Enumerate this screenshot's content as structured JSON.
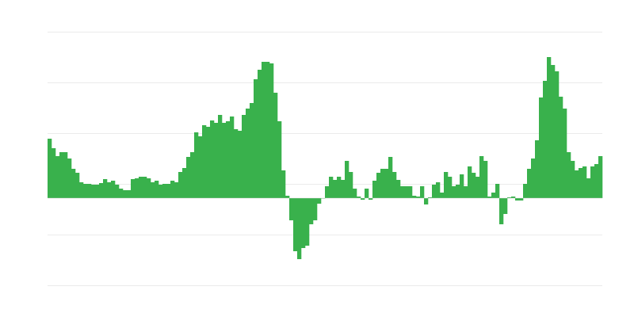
{
  "chart_data": {
    "type": "bar",
    "title": "",
    "xlabel": "",
    "ylabel": "",
    "ylim": [
      -110,
      210
    ],
    "gridlines": [
      210,
      146,
      82,
      18,
      -46,
      -110
    ],
    "grid": true,
    "legend": "none",
    "bar_color": "#39b14c",
    "grid_color": "#ebebeb",
    "values": [
      75,
      63,
      53,
      58,
      58,
      50,
      37,
      32,
      20,
      18,
      18,
      17,
      17,
      19,
      24,
      20,
      22,
      17,
      12,
      10,
      10,
      24,
      25,
      27,
      27,
      25,
      20,
      22,
      17,
      18,
      18,
      22,
      20,
      33,
      38,
      52,
      58,
      83,
      78,
      92,
      90,
      98,
      95,
      105,
      95,
      97,
      103,
      87,
      85,
      105,
      113,
      120,
      150,
      162,
      172,
      172,
      170,
      133,
      97,
      35,
      3,
      -28,
      -67,
      -77,
      -63,
      -60,
      -33,
      -28,
      -7,
      0,
      15,
      27,
      23,
      27,
      23,
      47,
      33,
      12,
      2,
      -2,
      12,
      -2,
      22,
      32,
      37,
      37,
      52,
      33,
      23,
      15,
      15,
      15,
      3,
      2,
      15,
      -8,
      1,
      17,
      20,
      7,
      33,
      27,
      15,
      17,
      30,
      15,
      40,
      32,
      27,
      53,
      47,
      2,
      7,
      18,
      -33,
      -20,
      1,
      2,
      -3,
      -3,
      18,
      37,
      50,
      73,
      127,
      148,
      178,
      168,
      160,
      128,
      113,
      58,
      47,
      35,
      38,
      40,
      25,
      40,
      43,
      53
    ]
  }
}
